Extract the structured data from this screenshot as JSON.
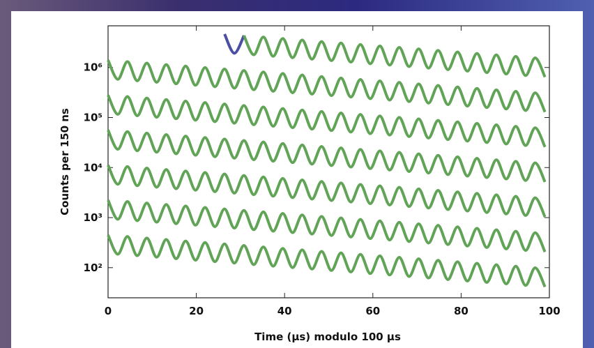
{
  "chart_data": {
    "type": "line",
    "xlabel": "Time (µs) modulo 100 µs",
    "ylabel": "Counts per 150 ns",
    "xlim": [
      0,
      100
    ],
    "xticks": [
      0,
      20,
      40,
      60,
      80,
      100
    ],
    "ylim": [
      25,
      6800000
    ],
    "log_y": true,
    "yticks": [
      {
        "value": 100,
        "label": "10²"
      },
      {
        "value": 1000,
        "label": "10³"
      },
      {
        "value": 10000,
        "label": "10⁴"
      },
      {
        "value": 100000,
        "label": "10⁵"
      },
      {
        "value": 1000000,
        "label": "10⁶"
      }
    ],
    "x": [
      0,
      2.2,
      4.4,
      6.6,
      8.8,
      11,
      13.2,
      15.4,
      17.6,
      19.8,
      22,
      24.2,
      26.4,
      28.6,
      30.8,
      33,
      35.2,
      37.4,
      39.6,
      41.8,
      44,
      46.2,
      48.4,
      50.6,
      52.8,
      55,
      57.2,
      59.4,
      61.6,
      63.8,
      66,
      68.2,
      70.4,
      72.6,
      74.8,
      77,
      79.2,
      81.4,
      83.6,
      85.8,
      88,
      90.2,
      92.4,
      94.6,
      96.8,
      99
    ],
    "series": [
      {
        "color": "#4b4ea3",
        "values": [
          null,
          null,
          null,
          null,
          null,
          null,
          null,
          null,
          null,
          null,
          null,
          null,
          4650000,
          1925000,
          4340000,
          null,
          null,
          null,
          null,
          null,
          null,
          null,
          null,
          null,
          null,
          null,
          null,
          null,
          null,
          null,
          null,
          null,
          null,
          null,
          null,
          null,
          null,
          null,
          null,
          null,
          null,
          null,
          null,
          null,
          null,
          null
        ]
      },
      {
        "color": "#62a457",
        "values": [
          null,
          null,
          null,
          null,
          null,
          null,
          null,
          null,
          null,
          null,
          null,
          null,
          null,
          null,
          4340000,
          1795000,
          4055000,
          1675000,
          3785000,
          1565000,
          3535000,
          1465000,
          3295000,
          1370000,
          3080000,
          1280000,
          2875000,
          1190000,
          2690000,
          1115000,
          2515000,
          1040000,
          2345000,
          970000,
          2190000,
          905000,
          2045000,
          845000,
          1910000,
          790000,
          1785000,
          740000,
          1665000,
          690000,
          1555000,
          645000
        ]
      },
      {
        "color": "#62a457",
        "values": [
          1400000,
          580000,
          1308000,
          542000,
          1221000,
          506000,
          1141000,
          472000,
          1065000,
          441000,
          995000,
          412000,
          930000,
          385000,
          868000,
          359000,
          811000,
          335000,
          757000,
          313000,
          707000,
          293000,
          659000,
          274000,
          616000,
          256000,
          575000,
          238000,
          538000,
          223000,
          503000,
          208000,
          469000,
          194000,
          438000,
          181000,
          409000,
          169000,
          382000,
          158000,
          357000,
          148000,
          333000,
          138000,
          311000,
          129000
        ]
      },
      {
        "color": "#62a457",
        "values": [
          280000,
          116000,
          261600,
          108400,
          244200,
          101200,
          228200,
          94400,
          213000,
          88200,
          199000,
          82400,
          186000,
          77000,
          173600,
          71800,
          162200,
          67000,
          151400,
          62600,
          141400,
          58600,
          131800,
          54800,
          123200,
          51200,
          115000,
          47600,
          107600,
          44600,
          100600,
          41600,
          93800,
          38800,
          87600,
          36200,
          81800,
          33800,
          76400,
          31600,
          71400,
          29600,
          66600,
          27600,
          62200,
          25800
        ]
      },
      {
        "color": "#62a457",
        "values": [
          56000,
          23200,
          52320,
          21680,
          48840,
          20240,
          45640,
          18880,
          42600,
          17640,
          39800,
          16480,
          37200,
          15400,
          34720,
          14360,
          32440,
          13400,
          30280,
          12520,
          28280,
          11720,
          26360,
          10960,
          24640,
          10240,
          23000,
          9520,
          21520,
          8920,
          20120,
          8320,
          18760,
          7760,
          17520,
          7240,
          16360,
          6760,
          15280,
          6320,
          14280,
          5920,
          13320,
          5520,
          12440,
          5160
        ]
      },
      {
        "color": "#62a457",
        "values": [
          11200,
          4640,
          10464,
          4336,
          9768,
          4048,
          9128,
          3776,
          8520,
          3528,
          7960,
          3296,
          7440,
          3080,
          6944,
          2872,
          6488,
          2680,
          6056,
          2504,
          5656,
          2344,
          5272,
          2192,
          4928,
          2048,
          4600,
          1904,
          4304,
          1784,
          4024,
          1664,
          3752,
          1552,
          3504,
          1448,
          3272,
          1352,
          3056,
          1264,
          2856,
          1184,
          2664,
          1104,
          2488,
          1032
        ]
      },
      {
        "color": "#62a457",
        "values": [
          2240,
          928,
          2092.8,
          867.2,
          1953.6,
          809.6,
          1825.6,
          755.2,
          1704,
          705.6,
          1592,
          659.2,
          1488,
          616,
          1388.8,
          574.4,
          1297.6,
          536,
          1211.2,
          500.8,
          1131.2,
          468.8,
          1054.4,
          438.4,
          985.6,
          409.6,
          920,
          380.8,
          860.8,
          356.8,
          804.8,
          332.8,
          750.4,
          310.4,
          700.8,
          289.6,
          654.4,
          270.4,
          611.2,
          252.8,
          571.2,
          236.8,
          532.8,
          220.8,
          497.6,
          206.4
        ]
      },
      {
        "color": "#62a457",
        "values": [
          448,
          185.6,
          418.6,
          173.4,
          390.7,
          161.9,
          365.1,
          151,
          340.8,
          141.1,
          318.4,
          131.8,
          297.6,
          123.2,
          277.8,
          114.9,
          259.5,
          107.2,
          242.2,
          100.2,
          226.2,
          93.8,
          210.9,
          87.7,
          197.1,
          81.9,
          184,
          76.2,
          172.2,
          71.4,
          161,
          66.6,
          150.1,
          62.1,
          140.2,
          57.9,
          130.9,
          54.1,
          122.2,
          50.6,
          114.2,
          47.4,
          106.6,
          44.2,
          99.5,
          41.3
        ]
      }
    ]
  }
}
